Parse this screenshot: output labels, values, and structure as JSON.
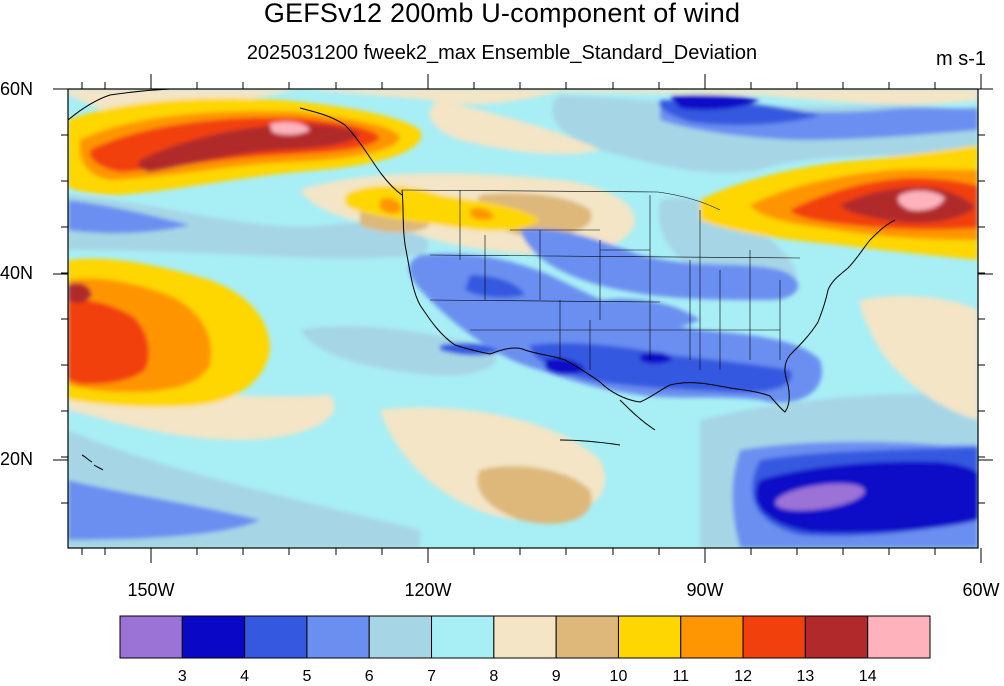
{
  "header": {
    "title": "GEFSv12 200mb U-component of wind",
    "subtitle": "2025031200 fweek2_max Ensemble_Standard_Deviation",
    "units": "m s-1"
  },
  "axes": {
    "lat_labels": [
      "60N",
      "40N",
      "20N"
    ],
    "lon_labels": [
      "150W",
      "120W",
      "90W",
      "60W"
    ]
  },
  "colorbar": {
    "levels": [
      "3",
      "4",
      "5",
      "6",
      "7",
      "8",
      "9",
      "10",
      "11",
      "12",
      "13",
      "14"
    ],
    "colors": [
      "#9b72d6",
      "#0b07c7",
      "#3558e0",
      "#6b8ff0",
      "#a6d6e6",
      "#a8eef5",
      "#f3e5c6",
      "#ddb87a",
      "#fed602",
      "#fe9503",
      "#f2400c",
      "#b1292b",
      "#fdb2bc"
    ]
  },
  "map": {
    "field": "200mb U-component of wind ensemble standard deviation",
    "lat_range": [
      10,
      60
    ],
    "lon_range": [
      -160,
      -60
    ],
    "background_color": "#a8eef5"
  }
}
